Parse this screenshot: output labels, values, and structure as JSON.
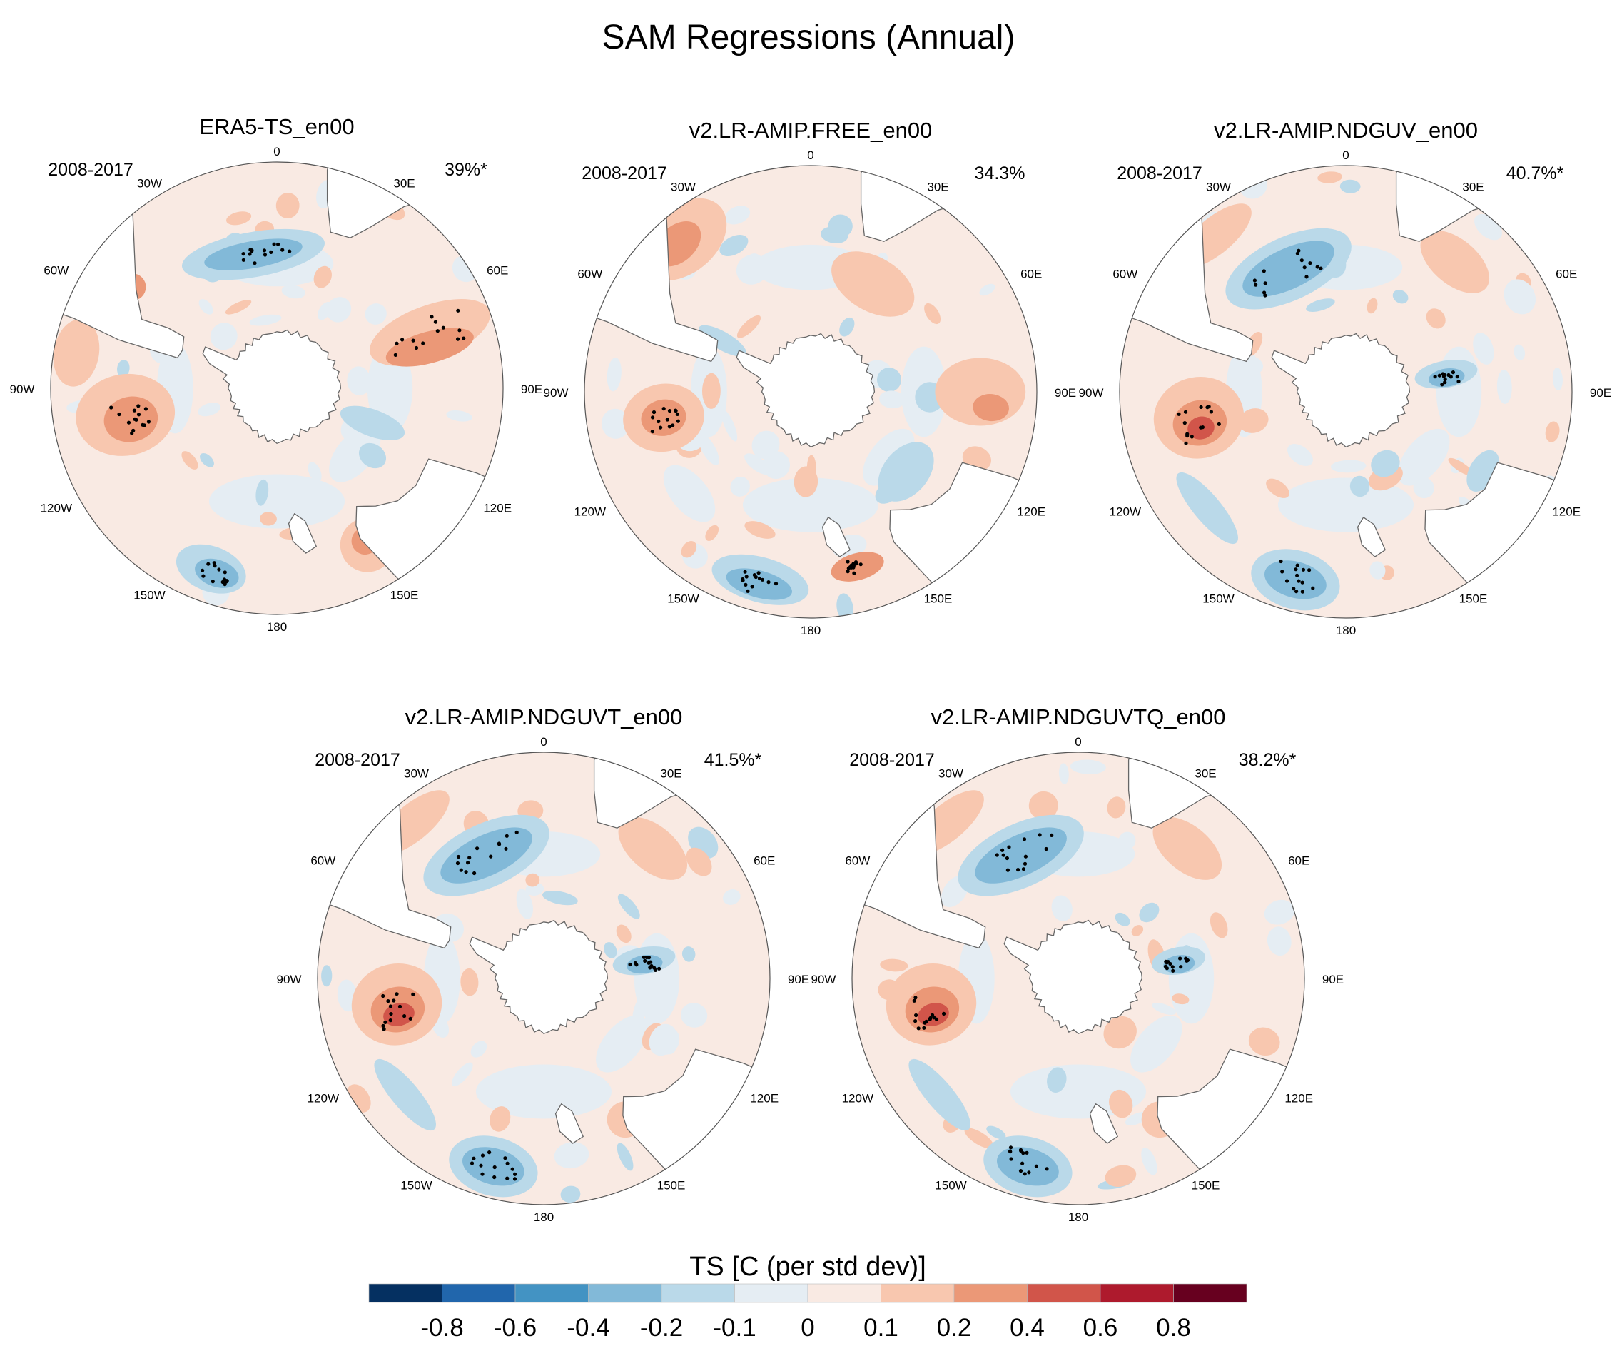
{
  "chart_data": {
    "type": "heatmap",
    "title": "SAM Regressions (Annual)",
    "projection": "south-polar-stereographic",
    "panels": [
      {
        "title": "ERA5-TS_en00",
        "period": "2008-2017",
        "pattern_correlation": "39%*"
      },
      {
        "title": "v2.LR-AMIP.FREE_en00",
        "period": "2008-2017",
        "pattern_correlation": "34.3%"
      },
      {
        "title": "v2.LR-AMIP.NDGUV_en00",
        "period": "2008-2017",
        "pattern_correlation": "40.7%*"
      },
      {
        "title": "v2.LR-AMIP.NDGUVT_en00",
        "period": "2008-2017",
        "pattern_correlation": "41.5%*"
      },
      {
        "title": "v2.LR-AMIP.NDGUVTQ_en00",
        "period": "2008-2017",
        "pattern_correlation": "38.2%*"
      }
    ],
    "longitude_labels": [
      "0",
      "30E",
      "60E",
      "90E",
      "120E",
      "150E",
      "180",
      "150W",
      "120W",
      "90W",
      "60W",
      "30W"
    ],
    "colorbar": {
      "title": "TS [C (per std dev)]",
      "levels": [
        "-0.8",
        "-0.6",
        "-0.4",
        "-0.2",
        "-0.1",
        "0",
        "0.1",
        "0.2",
        "0.4",
        "0.6",
        "0.8"
      ],
      "colors": [
        "#053061",
        "#2166ac",
        "#4393c3",
        "#82b9d8",
        "#bad9e9",
        "#e5edf3",
        "#f9eae3",
        "#f8c7af",
        "#eb9877",
        "#d1554a",
        "#ae1a2d",
        "#67001f"
      ]
    }
  }
}
